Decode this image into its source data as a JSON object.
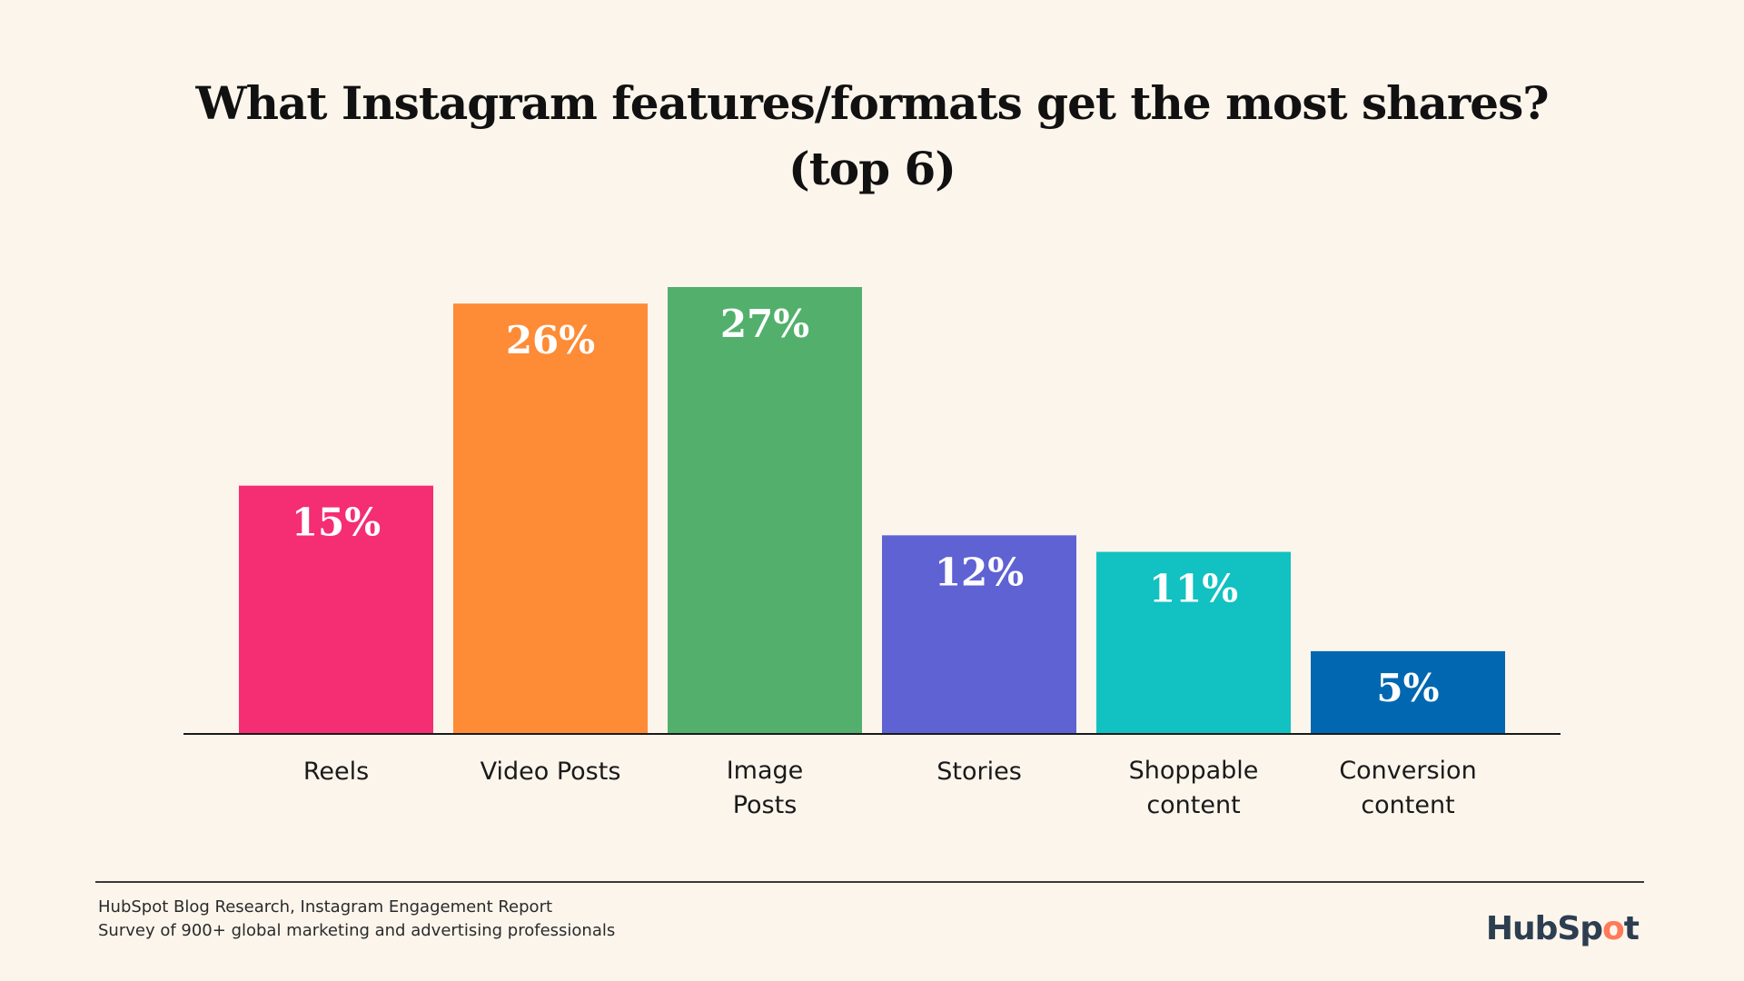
{
  "chart_data": {
    "type": "bar",
    "title_lines": [
      "What Instagram features/formats get the most shares?",
      "(top 6)"
    ],
    "categories": [
      [
        "Reels"
      ],
      [
        "Video Posts"
      ],
      [
        "Image",
        "Posts"
      ],
      [
        "Stories"
      ],
      [
        "Shoppable",
        "content"
      ],
      [
        "Conversion",
        "content"
      ]
    ],
    "values": [
      15,
      26,
      27,
      12,
      11,
      5
    ],
    "value_labels": [
      "15%",
      "26%",
      "27%",
      "12%",
      "11%",
      "5%"
    ],
    "colors": [
      "#f52d73",
      "#fe8b36",
      "#52b06c",
      "#5f62d3",
      "#12c1c1",
      "#0167b1"
    ],
    "unit": "%",
    "ylim": [
      0,
      27
    ],
    "grid": false,
    "xlabel": "",
    "ylabel": ""
  },
  "footer": {
    "source_line1": "HubSpot Blog Research, Instagram Engagement Report",
    "source_line2": "Survey of 900+ global marketing and advertising professionals"
  },
  "logo": {
    "text_before": "HubSp",
    "sprocket": "o",
    "text_after": "t",
    "brand_text": "HubSpot"
  }
}
